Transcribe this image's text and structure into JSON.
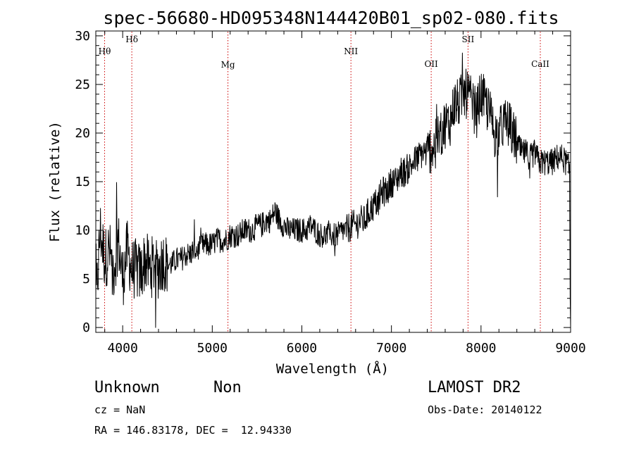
{
  "chart_data": {
    "type": "line",
    "title": "spec-56680-HD095348N144420B01_sp02-080.fits",
    "xlabel": "Wavelength (Å)",
    "ylabel": "Flux (relative)",
    "xlim": [
      3700,
      9000
    ],
    "ylim": [
      -0.5,
      30.5
    ],
    "xticks": [
      4000,
      5000,
      6000,
      7000,
      8000,
      9000
    ],
    "yticks": [
      0,
      5,
      10,
      15,
      20,
      25,
      30
    ],
    "grid": false,
    "series": [
      {
        "x": [
          3700,
          3750,
          3800,
          3850,
          3900,
          3950,
          4000,
          4050,
          4100,
          4150,
          4200,
          4250,
          4300,
          4350,
          4400,
          4450,
          4500,
          4550,
          4600,
          4650,
          4700,
          4750,
          4800,
          4850,
          4900,
          4950,
          5000,
          5050,
          5100,
          5150,
          5200,
          5250,
          5300,
          5350,
          5400,
          5450,
          5500,
          5550,
          5600,
          5650,
          5700,
          5750,
          5800,
          5850,
          5900,
          5950,
          6000,
          6050,
          6100,
          6150,
          6200,
          6250,
          6300,
          6350,
          6400,
          6450,
          6500,
          6550,
          6600,
          6650,
          6700,
          6750,
          6800,
          6850,
          6900,
          6950,
          7000,
          7050,
          7100,
          7150,
          7200,
          7250,
          7300,
          7350,
          7400,
          7450,
          7500,
          7550,
          7600,
          7650,
          7700,
          7750,
          7800,
          7850,
          7900,
          7950,
          8000,
          8050,
          8100,
          8150,
          8200,
          8250,
          8300,
          8350,
          8400,
          8450,
          8500,
          8550,
          8600,
          8650,
          8700,
          8750,
          8800,
          8850,
          8900,
          8950,
          9000
        ],
        "values": [
          2,
          10,
          7,
          8,
          6,
          9,
          5,
          8,
          6,
          6,
          5.5,
          7,
          6,
          6.5,
          6,
          7,
          6.5,
          6.5,
          7,
          7,
          7.5,
          7.5,
          8,
          8,
          8.5,
          8.5,
          8.5,
          9,
          9,
          9,
          9.5,
          9.5,
          9.5,
          10,
          10,
          10,
          10.5,
          10.5,
          11,
          11,
          12,
          11,
          10.5,
          10,
          10,
          10,
          10,
          10,
          10.5,
          10,
          9.5,
          9.5,
          9.5,
          9.5,
          9.5,
          10,
          10,
          10.5,
          10.5,
          11,
          11,
          12,
          12.5,
          13,
          14,
          14,
          15,
          15,
          16,
          16,
          16.5,
          17,
          17.5,
          18,
          18,
          18.5,
          19,
          20,
          21,
          21,
          23,
          23,
          24,
          24,
          23,
          22,
          24,
          23,
          22,
          20,
          20,
          21,
          21,
          20,
          19,
          18,
          18,
          17.5,
          18,
          17,
          17,
          17,
          17,
          17.5,
          17.5,
          17,
          16
        ]
      }
    ],
    "annotations": [
      {
        "label": "Hθ",
        "x": 3798
      },
      {
        "label": "Hδ",
        "x": 4102
      },
      {
        "label": "Mg",
        "x": 5175
      },
      {
        "label": "NII",
        "x": 6548
      },
      {
        "label": "OII",
        "x": 7444
      },
      {
        "label": "SII",
        "x": 7855
      },
      {
        "label": "CaII",
        "x": 8662
      }
    ],
    "line_color": "#000000",
    "marker_line_color": "#cc0000"
  },
  "info": {
    "object_class": "Unknown",
    "object_subclass": "Non",
    "survey": "LAMOST DR2",
    "redshift": "cz = NaN",
    "obs_date": "Obs-Date: 20140122",
    "coords": "RA = 146.83178, DEC =  12.94330"
  }
}
